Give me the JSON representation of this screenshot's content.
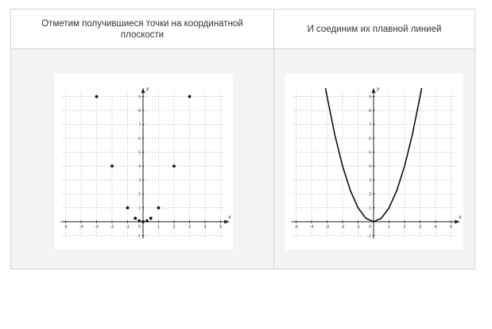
{
  "table": {
    "header_left": "Отметим получившиеся точки на координатной плоскости",
    "header_right": "И соединим их плавной линией"
  },
  "chart_data": [
    {
      "type": "scatter",
      "title": "",
      "xlabel": "x",
      "ylabel": "y",
      "xlim": [
        -5,
        5
      ],
      "ylim": [
        -1,
        9
      ],
      "x_ticks": [
        "-5",
        "-4",
        "-3",
        "-2",
        "-1",
        "1",
        "2",
        "3",
        "4",
        "5"
      ],
      "y_ticks": [
        "-1",
        "1",
        "2",
        "3",
        "4",
        "5",
        "6",
        "7",
        "8",
        "9"
      ],
      "origin_label": "0",
      "grid": true,
      "series": [
        {
          "points": [
            [
              -3,
              9
            ],
            [
              -2,
              4
            ],
            [
              -1,
              1
            ],
            [
              -0.5,
              0.25
            ],
            [
              -0.25,
              0.0625
            ],
            [
              0,
              0
            ],
            [
              0.25,
              0.0625
            ],
            [
              0.5,
              0.25
            ],
            [
              1,
              1
            ],
            [
              2,
              4
            ],
            [
              3,
              9
            ]
          ]
        }
      ]
    },
    {
      "type": "line",
      "title": "",
      "xlabel": "x",
      "ylabel": "y",
      "xlim": [
        -5,
        5
      ],
      "ylim": [
        -1,
        9
      ],
      "x_ticks": [
        "-5",
        "-4",
        "-3",
        "-2",
        "-1",
        "1",
        "2",
        "3",
        "4",
        "5"
      ],
      "y_ticks": [
        "-1",
        "1",
        "2",
        "3",
        "4",
        "5",
        "6",
        "7",
        "8",
        "9"
      ],
      "origin_label": "0",
      "grid": true,
      "series": [
        {
          "points": [
            [
              -3.1,
              9.61
            ],
            [
              -3,
              9
            ],
            [
              -2.5,
              6.25
            ],
            [
              -2,
              4
            ],
            [
              -1.5,
              2.25
            ],
            [
              -1,
              1
            ],
            [
              -0.5,
              0.25
            ],
            [
              0,
              0
            ],
            [
              0.5,
              0.25
            ],
            [
              1,
              1
            ],
            [
              1.5,
              2.25
            ],
            [
              2,
              4
            ],
            [
              2.5,
              6.25
            ],
            [
              3,
              9
            ],
            [
              3.1,
              9.61
            ]
          ]
        }
      ]
    }
  ]
}
